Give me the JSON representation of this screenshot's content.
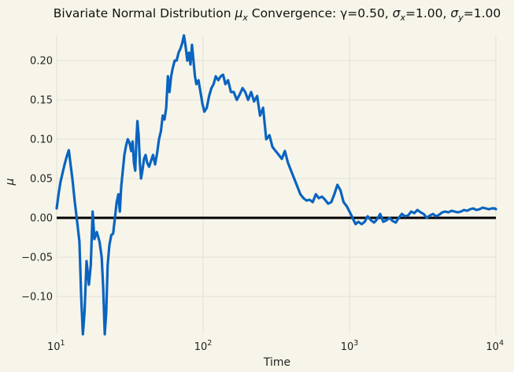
{
  "chart_data": {
    "type": "line",
    "title": "Bivariate Normal Distribution μx Convergence: γ=0.50, σx=1.00, σy=1.00",
    "title_parts": {
      "prefix": "Bivariate Normal Distribution ",
      "mu": "μ",
      "mu_sub": "x",
      "middle": " Convergence: γ=0.50, ",
      "sx": "σ",
      "sx_sub": "x",
      "sx_val": "=1.00, ",
      "sy": "σ",
      "sy_sub": "y",
      "sy_val": "=1.00"
    },
    "xlabel": "Time",
    "ylabel": "μ",
    "xscale": "log",
    "xlim": [
      10,
      10000
    ],
    "ylim": [
      -0.148,
      0.232
    ],
    "x_ticks": [
      {
        "base": "10",
        "exp": "1",
        "value": 10
      },
      {
        "base": "10",
        "exp": "2",
        "value": 100
      },
      {
        "base": "10",
        "exp": "3",
        "value": 1000
      },
      {
        "base": "10",
        "exp": "4",
        "value": 10000
      }
    ],
    "y_ticks": [
      {
        "label": "−0.10",
        "value": -0.1
      },
      {
        "label": "−0.05",
        "value": -0.05
      },
      {
        "label": "0.00",
        "value": 0.0
      },
      {
        "label": "0.05",
        "value": 0.05
      },
      {
        "label": "0.10",
        "value": 0.1
      },
      {
        "label": "0.15",
        "value": 0.15
      },
      {
        "label": "0.20",
        "value": 0.2
      }
    ],
    "grid": true,
    "reference_line": {
      "y": 0.0,
      "color": "#000000"
    },
    "series": [
      {
        "color": "#0a64c0",
        "points": [
          [
            10.0,
            0.012
          ],
          [
            10.3,
            0.03
          ],
          [
            10.6,
            0.045
          ],
          [
            11.0,
            0.058
          ],
          [
            11.4,
            0.07
          ],
          [
            11.8,
            0.08
          ],
          [
            12.1,
            0.086
          ],
          [
            12.4,
            0.07
          ],
          [
            12.8,
            0.05
          ],
          [
            13.3,
            0.02
          ],
          [
            13.8,
            -0.005
          ],
          [
            14.3,
            -0.03
          ],
          [
            14.7,
            -0.1
          ],
          [
            15.1,
            -0.148
          ],
          [
            15.5,
            -0.12
          ],
          [
            16.0,
            -0.055
          ],
          [
            16.6,
            -0.085
          ],
          [
            17.1,
            -0.06
          ],
          [
            17.6,
            0.008
          ],
          [
            18.1,
            -0.027
          ],
          [
            18.8,
            -0.018
          ],
          [
            19.6,
            -0.03
          ],
          [
            20.3,
            -0.05
          ],
          [
            20.8,
            -0.09
          ],
          [
            21.3,
            -0.148
          ],
          [
            21.8,
            -0.12
          ],
          [
            22.3,
            -0.06
          ],
          [
            22.9,
            -0.035
          ],
          [
            23.6,
            -0.022
          ],
          [
            24.3,
            -0.02
          ],
          [
            25.0,
            0.0
          ],
          [
            25.7,
            0.02
          ],
          [
            26.4,
            0.03
          ],
          [
            27.0,
            0.008
          ],
          [
            27.6,
            0.04
          ],
          [
            28.3,
            0.06
          ],
          [
            29.0,
            0.08
          ],
          [
            29.8,
            0.092
          ],
          [
            30.6,
            0.1
          ],
          [
            31.5,
            0.095
          ],
          [
            32.3,
            0.085
          ],
          [
            33.0,
            0.097
          ],
          [
            33.7,
            0.07
          ],
          [
            34.4,
            0.06
          ],
          [
            35.0,
            0.097
          ],
          [
            35.6,
            0.123
          ],
          [
            36.3,
            0.105
          ],
          [
            37.0,
            0.07
          ],
          [
            37.7,
            0.05
          ],
          [
            38.5,
            0.06
          ],
          [
            39.5,
            0.075
          ],
          [
            40.5,
            0.08
          ],
          [
            41.5,
            0.07
          ],
          [
            42.8,
            0.065
          ],
          [
            44.0,
            0.072
          ],
          [
            45.5,
            0.08
          ],
          [
            47.0,
            0.068
          ],
          [
            48.5,
            0.082
          ],
          [
            50.0,
            0.1
          ],
          [
            51.5,
            0.11
          ],
          [
            53.0,
            0.13
          ],
          [
            54.5,
            0.125
          ],
          [
            56.0,
            0.14
          ],
          [
            57.5,
            0.18
          ],
          [
            59.0,
            0.16
          ],
          [
            60.5,
            0.18
          ],
          [
            62.0,
            0.19
          ],
          [
            64.0,
            0.2
          ],
          [
            66.0,
            0.2
          ],
          [
            68.0,
            0.21
          ],
          [
            70.0,
            0.215
          ],
          [
            72.0,
            0.222
          ],
          [
            74.0,
            0.232
          ],
          [
            76.0,
            0.218
          ],
          [
            78.0,
            0.2
          ],
          [
            80.0,
            0.21
          ],
          [
            82.0,
            0.195
          ],
          [
            84.0,
            0.22
          ],
          [
            86.0,
            0.2
          ],
          [
            88.0,
            0.18
          ],
          [
            90.0,
            0.17
          ],
          [
            93.0,
            0.175
          ],
          [
            96.0,
            0.16
          ],
          [
            99.0,
            0.145
          ],
          [
            102.0,
            0.135
          ],
          [
            106.0,
            0.14
          ],
          [
            110.0,
            0.155
          ],
          [
            114.0,
            0.165
          ],
          [
            118.0,
            0.17
          ],
          [
            122.0,
            0.18
          ],
          [
            127.0,
            0.175
          ],
          [
            132.0,
            0.18
          ],
          [
            137.0,
            0.182
          ],
          [
            142.0,
            0.17
          ],
          [
            148.0,
            0.175
          ],
          [
            155.0,
            0.16
          ],
          [
            162.0,
            0.16
          ],
          [
            170.0,
            0.15
          ],
          [
            178.0,
            0.157
          ],
          [
            186.0,
            0.165
          ],
          [
            194.0,
            0.16
          ],
          [
            203.0,
            0.15
          ],
          [
            213.0,
            0.16
          ],
          [
            223.0,
            0.148
          ],
          [
            234.0,
            0.155
          ],
          [
            245.0,
            0.13
          ],
          [
            257.0,
            0.14
          ],
          [
            270.0,
            0.1
          ],
          [
            284.0,
            0.105
          ],
          [
            298.0,
            0.09
          ],
          [
            313.0,
            0.085
          ],
          [
            329.0,
            0.08
          ],
          [
            345.0,
            0.075
          ],
          [
            362.0,
            0.085
          ],
          [
            380.0,
            0.07
          ],
          [
            399.0,
            0.06
          ],
          [
            419.0,
            0.05
          ],
          [
            440.0,
            0.04
          ],
          [
            462.0,
            0.03
          ],
          [
            485.0,
            0.025
          ],
          [
            509.0,
            0.022
          ],
          [
            534.0,
            0.023
          ],
          [
            561.0,
            0.02
          ],
          [
            589.0,
            0.03
          ],
          [
            618.0,
            0.025
          ],
          [
            649.0,
            0.027
          ],
          [
            681.0,
            0.023
          ],
          [
            715.0,
            0.018
          ],
          [
            751.0,
            0.02
          ],
          [
            788.0,
            0.03
          ],
          [
            827.0,
            0.042
          ],
          [
            868.0,
            0.035
          ],
          [
            911.0,
            0.02
          ],
          [
            956.0,
            0.015
          ],
          [
            1000.0,
            0.008
          ],
          [
            1050.0,
            0.0
          ],
          [
            1100.0,
            -0.008
          ],
          [
            1150.0,
            -0.005
          ],
          [
            1210.0,
            -0.008
          ],
          [
            1270.0,
            -0.005
          ],
          [
            1330.0,
            0.002
          ],
          [
            1400.0,
            -0.003
          ],
          [
            1470.0,
            -0.006
          ],
          [
            1540.0,
            -0.002
          ],
          [
            1620.0,
            0.005
          ],
          [
            1700.0,
            -0.005
          ],
          [
            1790.0,
            -0.003
          ],
          [
            1880.0,
            0.0
          ],
          [
            1970.0,
            -0.004
          ],
          [
            2070.0,
            -0.006
          ],
          [
            2170.0,
            0.0
          ],
          [
            2280.0,
            0.005
          ],
          [
            2390.0,
            0.002
          ],
          [
            2510.0,
            0.003
          ],
          [
            2640.0,
            0.008
          ],
          [
            2770.0,
            0.006
          ],
          [
            2910.0,
            0.01
          ],
          [
            3060.0,
            0.007
          ],
          [
            3210.0,
            0.005
          ],
          [
            3370.0,
            0.0
          ],
          [
            3540.0,
            0.003
          ],
          [
            3720.0,
            0.005
          ],
          [
            3900.0,
            0.002
          ],
          [
            4100.0,
            0.004
          ],
          [
            4300.0,
            0.007
          ],
          [
            4520.0,
            0.008
          ],
          [
            4740.0,
            0.007
          ],
          [
            4980.0,
            0.009
          ],
          [
            5230.0,
            0.008
          ],
          [
            5490.0,
            0.007
          ],
          [
            5770.0,
            0.008
          ],
          [
            6050.0,
            0.01
          ],
          [
            6360.0,
            0.009
          ],
          [
            6670.0,
            0.011
          ],
          [
            7010.0,
            0.012
          ],
          [
            7360.0,
            0.01
          ],
          [
            7730.0,
            0.011
          ],
          [
            8110.0,
            0.013
          ],
          [
            8520.0,
            0.012
          ],
          [
            8940.0,
            0.011
          ],
          [
            9390.0,
            0.012
          ],
          [
            9860.0,
            0.012
          ],
          [
            10000.0,
            0.011
          ]
        ]
      }
    ]
  }
}
